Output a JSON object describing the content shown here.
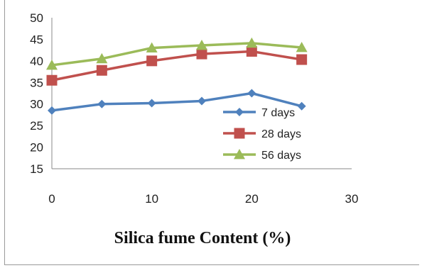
{
  "chart_data": {
    "type": "line",
    "title": "",
    "xlabel": "Silica fume Content (%)",
    "ylabel": "",
    "x": [
      0,
      5,
      10,
      15,
      20,
      25
    ],
    "xlim": [
      0,
      30
    ],
    "ylim": [
      15,
      50
    ],
    "xticks": [
      "0",
      "10",
      "20",
      "30"
    ],
    "yticks": [
      "15",
      "20",
      "25",
      "30",
      "35",
      "40",
      "45",
      "50"
    ],
    "grid": false,
    "legend_position": "right",
    "series": [
      {
        "name": "7 days",
        "values": [
          28.5,
          30.0,
          30.2,
          30.7,
          32.5,
          29.5
        ],
        "color": "#4f81bd",
        "marker": "diamond"
      },
      {
        "name": "28 days",
        "values": [
          35.5,
          37.8,
          40.0,
          41.6,
          42.2,
          40.3
        ],
        "color": "#c0504d",
        "marker": "square"
      },
      {
        "name": "56 days",
        "values": [
          39.0,
          40.5,
          43.0,
          43.6,
          44.1,
          43.1
        ],
        "color": "#9bbb59",
        "marker": "triangle"
      }
    ]
  }
}
